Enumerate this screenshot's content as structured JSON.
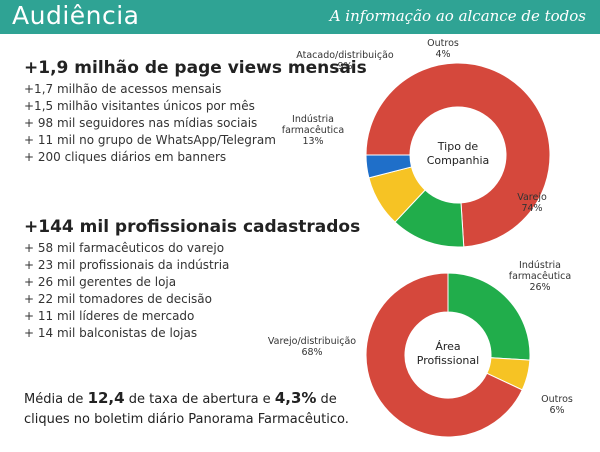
{
  "header": {
    "title": "Audiência",
    "tagline": "A informação ao alcance de todos"
  },
  "block1": {
    "heading": "+1,9 milhão de page views mensais",
    "items": [
      "+1,7 milhão de acessos mensais",
      "+1,5 milhão visitantes únicos por mês",
      "+ 98 mil seguidores nas mídias sociais",
      "+ 11 mil no grupo de WhatsApp/Telegram",
      "+ 200 cliques diários em banners"
    ]
  },
  "block2": {
    "heading": "+144 mil profissionais cadastrados",
    "items": [
      "+ 58 mil farmacêuticos do varejo",
      "+ 23 mil profissionais da indústria",
      "+ 26 mil gerentes de loja",
      "+ 22 mil tomadores de decisão",
      "+ 11 mil líderes de mercado",
      "+ 14 mil balconistas de lojas"
    ]
  },
  "footer": {
    "pre": "Média de ",
    "open_rate": "12,4",
    "mid": " de taxa de abertura e ",
    "click_rate": "4,3%",
    "post": " de cliques no boletim diário Panorama Farmacêutico."
  },
  "chart_data": [
    {
      "type": "pie",
      "center_label": [
        "Tipo de",
        "Companhia"
      ],
      "slices": [
        {
          "name": "Varejo",
          "value": 74,
          "label": "74%",
          "color": "#d5483c"
        },
        {
          "name": "Indústria farmacêutica",
          "value": 13,
          "label": "13%",
          "color": "#21ad4b"
        },
        {
          "name": "Atacado/distribuição",
          "value": 9,
          "label": "9%",
          "color": "#f6c324"
        },
        {
          "name": "Outros",
          "value": 4,
          "label": "4%",
          "color": "#1f6fc9"
        }
      ]
    },
    {
      "type": "pie",
      "center_label": [
        "Área",
        "Profissional"
      ],
      "slices": [
        {
          "name": "Indústria farmacêutica",
          "value": 26,
          "label": "26%",
          "color": "#21ad4b"
        },
        {
          "name": "Outros",
          "value": 6,
          "label": "6%",
          "color": "#f6c324"
        },
        {
          "name": "Varejo/distribuição",
          "value": 68,
          "label": "68%",
          "color": "#d5483c"
        }
      ]
    }
  ]
}
